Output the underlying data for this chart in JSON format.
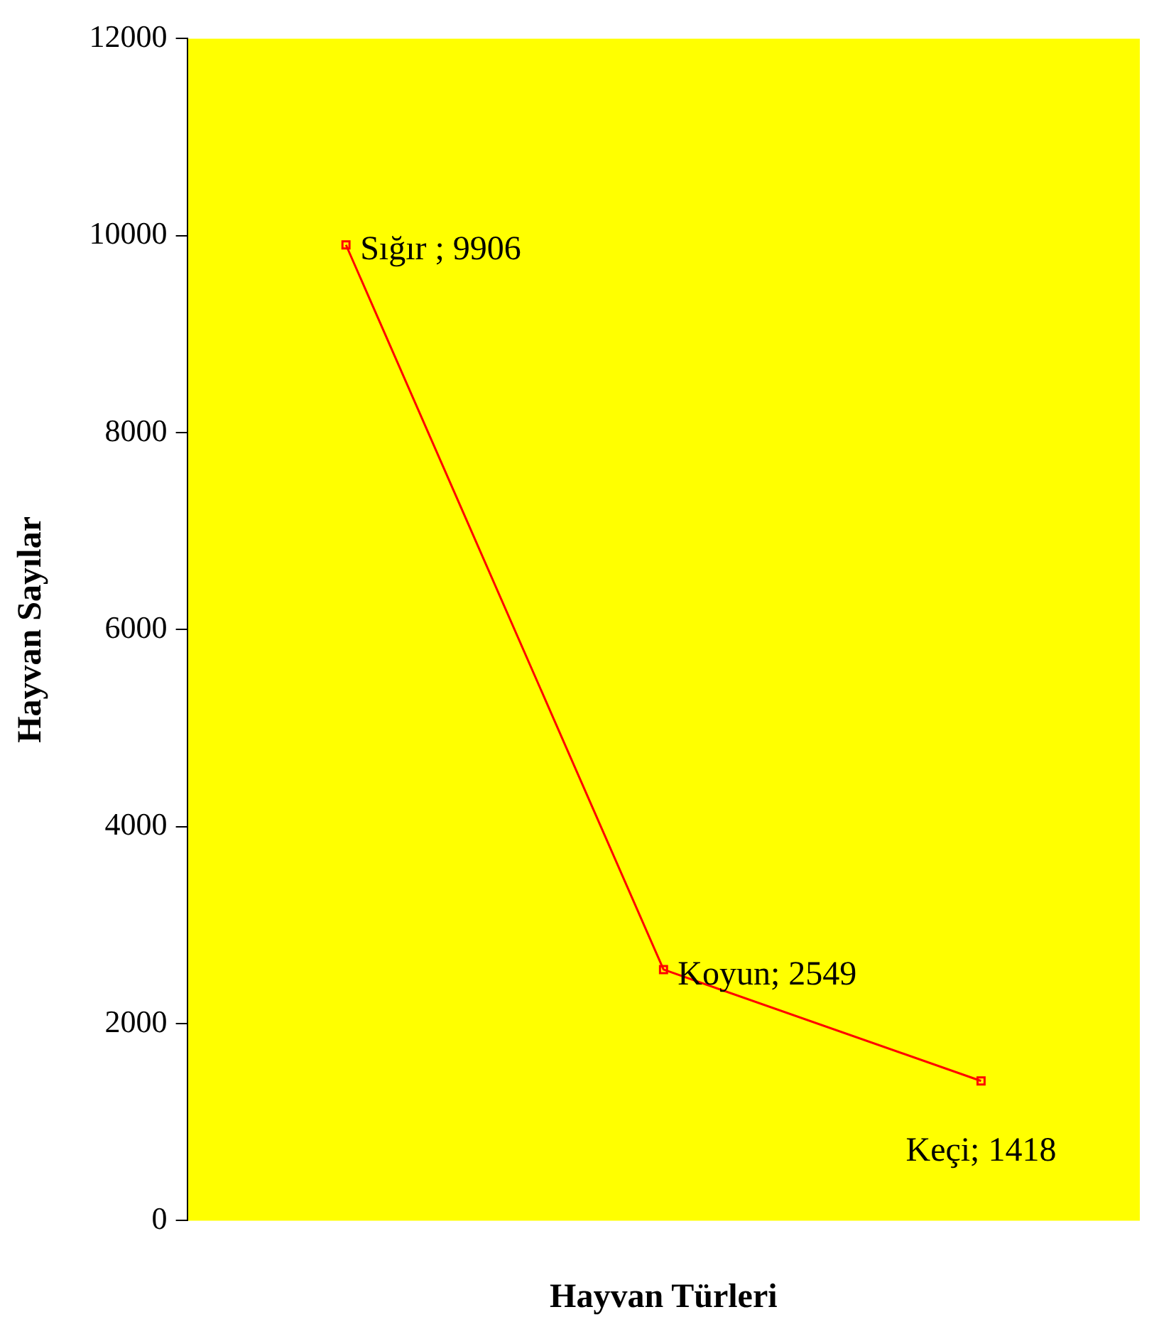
{
  "chart_data": {
    "type": "line",
    "xlabel": "Hayvan Türleri",
    "ylabel": "Hayvan Sayılar",
    "categories": [
      null,
      null,
      null
    ],
    "series": [
      {
        "color": "#ff0000",
        "values": [
          9906,
          2549,
          1418
        ],
        "value_labels": [
          "Sığır ; 9906",
          "Koyun; 2549",
          "Keçi; 1418"
        ]
      }
    ],
    "ylim": [
      0,
      12000
    ],
    "yticks": [
      0,
      2000,
      4000,
      6000,
      8000,
      10000,
      12000
    ],
    "tick_labels": "y",
    "grid": false,
    "legend": false,
    "marker": "square",
    "line_style": "solid"
  }
}
